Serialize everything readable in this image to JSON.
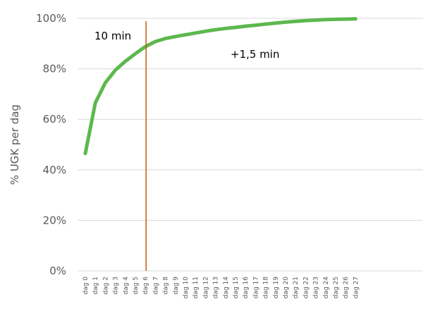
{
  "chart_data": {
    "type": "line",
    "title": "",
    "xlabel": "",
    "ylabel": "% UGK per dag",
    "ylim": [
      0,
      100
    ],
    "ytick_labels": [
      "0%",
      "20%",
      "40%",
      "60%",
      "80%",
      "100%"
    ],
    "yticks": [
      0,
      20,
      40,
      60,
      80,
      100
    ],
    "grid": true,
    "categories": [
      "dag 0",
      "dag 1",
      "dag 2",
      "dag 3",
      "dag 4",
      "dag 5",
      "dag 6",
      "dag 7",
      "dag 8",
      "dag 9",
      "dag 10",
      "dag 11",
      "dag 12",
      "dag 13",
      "dag 14",
      "dag 15",
      "dag 16",
      "dag 17",
      "dag 18",
      "dag 19",
      "dag 20",
      "dag 21",
      "dag 22",
      "dag 23",
      "dag 24",
      "dag 25",
      "dag 26",
      "dag 27"
    ],
    "series": [
      {
        "values": [
          46.5,
          66.5,
          74.5,
          79.5,
          83,
          86,
          88.8,
          90.8,
          92,
          92.8,
          93.5,
          94.2,
          94.9,
          95.5,
          96,
          96.4,
          96.9,
          97.3,
          97.7,
          98.1,
          98.5,
          98.8,
          99.1,
          99.3,
          99.5,
          99.6,
          99.7,
          99.8
        ],
        "color": "#5db84e"
      }
    ],
    "marker_line": {
      "category": "dag 6",
      "color": "#c55a11"
    },
    "annotations": [
      "10 min",
      "+1,5 min"
    ]
  }
}
